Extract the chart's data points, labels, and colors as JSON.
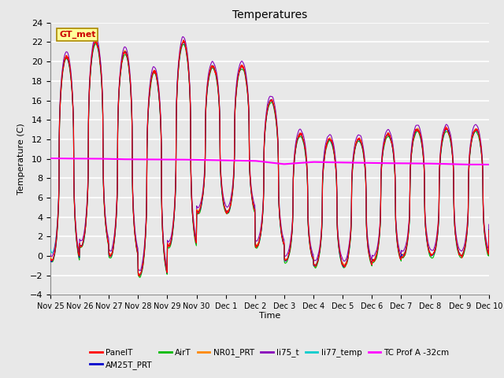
{
  "title": "Temperatures",
  "xlabel": "Time",
  "ylabel": "Temperature (C)",
  "ylim": [
    -4,
    24
  ],
  "yticks": [
    -4,
    -2,
    0,
    2,
    4,
    6,
    8,
    10,
    12,
    14,
    16,
    18,
    20,
    22,
    24
  ],
  "xtick_labels": [
    "Nov 25",
    "Nov 26",
    "Nov 27",
    "Nov 28",
    "Nov 29",
    "Nov 30",
    "Dec 1",
    "Dec 2",
    "Dec 3",
    "Dec 4",
    "Dec 5",
    "Dec 6",
    "Dec 7",
    "Dec 8",
    "Dec 9",
    "Dec 10"
  ],
  "series": [
    {
      "name": "PanelT",
      "color": "#FF0000"
    },
    {
      "name": "AM25T_PRT",
      "color": "#0000CC"
    },
    {
      "name": "AirT",
      "color": "#00BB00"
    },
    {
      "name": "NR01_PRT",
      "color": "#FF8800"
    },
    {
      "name": "li75_t",
      "color": "#8800BB"
    },
    {
      "name": "li77_temp",
      "color": "#00CCCC"
    },
    {
      "name": "TC Prof A -32cm",
      "color": "#FF00FF"
    }
  ],
  "annotation_text": "GT_met",
  "annotation_color": "#CC0000",
  "annotation_bg": "#FFFF99",
  "background_color": "#E8E8E8",
  "figwidth": 6.4,
  "figheight": 4.8,
  "dpi": 100
}
